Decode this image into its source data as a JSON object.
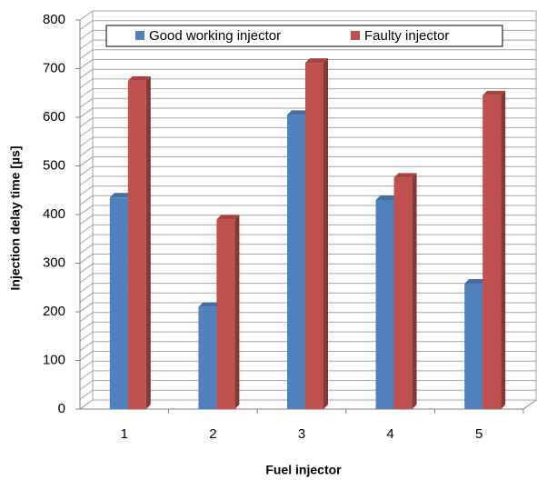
{
  "chart_data": {
    "type": "bar",
    "categories": [
      "1",
      "2",
      "3",
      "4",
      "5"
    ],
    "series": [
      {
        "name": "Good working injector",
        "color": "#4f81bd",
        "values": [
          435,
          210,
          605,
          430,
          258
        ]
      },
      {
        "name": "Faulty injector",
        "color": "#c0504d",
        "values": [
          675,
          390,
          712,
          476,
          645
        ]
      }
    ],
    "x_label": "Fuel injector",
    "y_label": "Injection delay time [µs]",
    "ylim": [
      0,
      800
    ],
    "yticks": [
      0,
      100,
      200,
      300,
      400,
      500,
      600,
      700,
      800
    ],
    "grid": true,
    "minor_grid_step": 20,
    "legend": "top"
  }
}
